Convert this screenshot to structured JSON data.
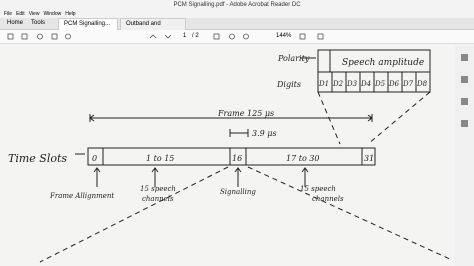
{
  "window": {
    "title": "PCM Signalling.pdf - Adobe Acrobat Reader DC"
  },
  "menu": [
    "File",
    "Edit",
    "View",
    "Window",
    "Help"
  ],
  "tabs": [
    "Home",
    "Tools",
    "PCM Signalling...",
    "Outband and inban..."
  ],
  "toolbar": {
    "page": "1",
    "page_total": "/ 2",
    "zoom": "144%"
  },
  "document": {
    "polarity": "Polarity",
    "speech_amplitude": "Speech amplitude",
    "digits": "Digits",
    "digit_cells": [
      "D1",
      "D2",
      "D3",
      "D4",
      "D5",
      "D6",
      "D7",
      "D8"
    ],
    "frame": "Frame 125 μs",
    "slot_time": "3.9 μs",
    "time_slots": "Time Slots",
    "slots": [
      "0",
      "1 to 15",
      "16",
      "17 to 30",
      "31"
    ],
    "labels": [
      "Frame Allignment",
      "15 speech",
      "channels",
      "Signalling",
      "15 speech",
      "channels"
    ]
  }
}
